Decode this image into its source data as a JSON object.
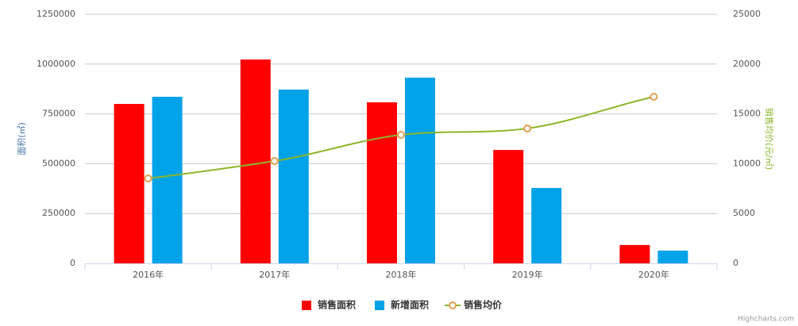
{
  "chart_data": {
    "type": "bar_line",
    "categories": [
      "2016年",
      "2017年",
      "2018年",
      "2019年",
      "2020年"
    ],
    "y_label": "面积(㎡)",
    "y2_label": "销售均价(元/㎡)",
    "ylim": [
      0,
      1250000
    ],
    "yticks": [
      0,
      250000,
      500000,
      750000,
      1000000,
      1250000
    ],
    "y2lim": [
      0,
      25000
    ],
    "y2ticks": [
      0,
      5000,
      10000,
      15000,
      20000,
      25000
    ],
    "grid": true,
    "legend": "bottom",
    "series": [
      {
        "name": "销售面积",
        "type": "bar",
        "color": "#ff0000",
        "values": [
          800000,
          1023000,
          808000,
          569000,
          92000
        ]
      },
      {
        "name": "新增面积",
        "type": "bar",
        "color": "#00a2e8",
        "values": [
          836000,
          872000,
          932000,
          378000,
          64000
        ]
      },
      {
        "name": "销售均价",
        "type": "line",
        "axis": "y2",
        "color": "#8db62a",
        "marker_color": "#e0a050",
        "values": [
          8520,
          10270,
          12900,
          13540,
          16720
        ]
      }
    ],
    "credit": "Highcharts.com"
  }
}
